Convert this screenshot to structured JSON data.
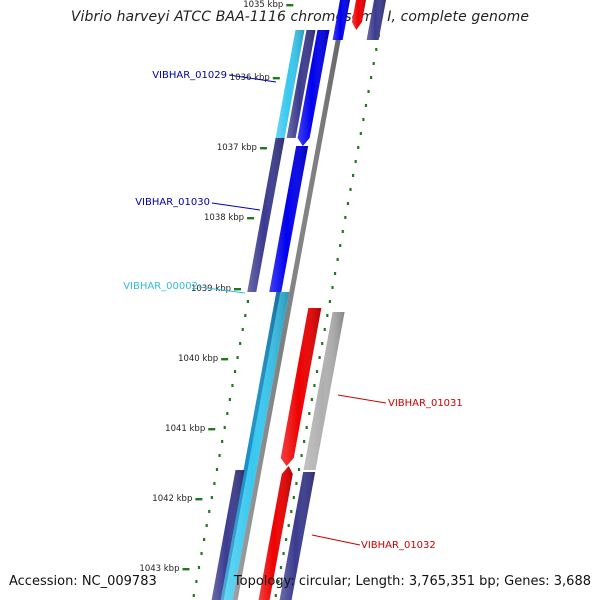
{
  "title": "Vibrio harveyi ATCC BAA-1116 chromosome I, complete genome",
  "accession": "Accession: NC_009783",
  "topology": "Topology: circular; Length: 3,765,351 bp; Genes: 3,688",
  "colors": {
    "forward_cds": "#0000ee",
    "forward_other": "#3b3b8f",
    "forward_rna": "#38c8f0",
    "reverse_cds": "#ee0000",
    "reverse_other": "#b0b0b0",
    "backbone": "#808080",
    "tick": "#1f7a1f",
    "label_blue": "#0000aa",
    "label_cyan": "#33bbdd",
    "label_red": "#cc0000"
  },
  "ticks": [
    {
      "label": "1035 kbp"
    },
    {
      "label": "1036 kbp"
    },
    {
      "label": "1037 kbp"
    },
    {
      "label": "1038 kbp"
    },
    {
      "label": "1039 kbp"
    },
    {
      "label": "1040 kbp"
    },
    {
      "label": "1041 kbp"
    },
    {
      "label": "1042 kbp"
    },
    {
      "label": "1043 kbp"
    }
  ],
  "features": [
    {
      "name": "VIBHAR_01029"
    },
    {
      "name": "VIBHAR_01030"
    },
    {
      "name": "VIBHAR_00002"
    },
    {
      "name": "VIBHAR_01031"
    },
    {
      "name": "VIBHAR_01032"
    }
  ]
}
